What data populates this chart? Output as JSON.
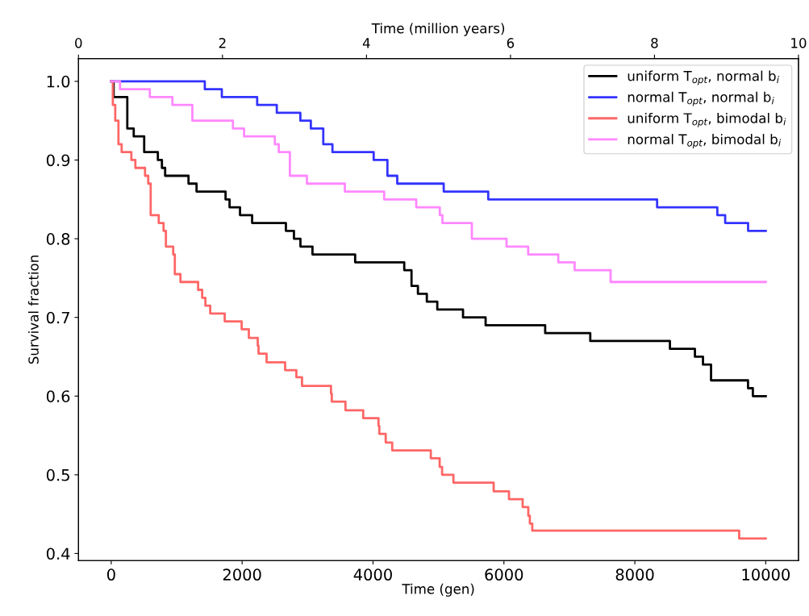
{
  "chart_data": {
    "type": "step",
    "xlabel": "Time (gen)",
    "ylabel": "Survival fraction",
    "x2label": "Time (million years)",
    "xlim": [
      -500,
      10500
    ],
    "xticks": [
      0,
      2000,
      4000,
      6000,
      8000,
      10000
    ],
    "ylim": [
      0.391,
      1.029
    ],
    "yticks": [
      0.4,
      0.5,
      0.6,
      0.7,
      0.8,
      0.9,
      {
        "value": 1,
        "label": "1.0"
      }
    ],
    "x2lim": [
      0,
      10
    ],
    "x2ticks": [
      0,
      2,
      4,
      6,
      8,
      10
    ],
    "legend": "top right",
    "grid": false,
    "series": [
      {
        "name": "uniform T$_{opt}$, normal b$_{i}$",
        "color": "#000000",
        "x": [
          0,
          37,
          246,
          344,
          504,
          713,
          775,
          824,
          1181,
          1304,
          1747,
          1808,
          1968,
          2153,
          2669,
          2792,
          2891,
          3075,
          3727,
          4477,
          4588,
          4686,
          4822,
          4982,
          5375,
          5720,
          6630,
          7319,
          8536,
          8918,
          9041,
          9164,
          9729,
          9803,
          10000
        ],
        "values": [
          1.0,
          0.98,
          0.94,
          0.93,
          0.91,
          0.9,
          0.89,
          0.88,
          0.87,
          0.86,
          0.85,
          0.84,
          0.83,
          0.82,
          0.81,
          0.8,
          0.79,
          0.78,
          0.77,
          0.76,
          0.74,
          0.73,
          0.72,
          0.71,
          0.7,
          0.69,
          0.68,
          0.67,
          0.66,
          0.65,
          0.64,
          0.62,
          0.61,
          0.6,
          0.6
        ]
      },
      {
        "name": "normal T$_{opt}$, normal b$_{i}$",
        "color": "#3333ff",
        "x": [
          0,
          1430,
          1690,
          2230,
          2530,
          2890,
          3050,
          3240,
          3380,
          4010,
          4220,
          4370,
          5080,
          5760,
          8340,
          9260,
          9380,
          9730,
          10000
        ],
        "values": [
          1.0,
          0.99,
          0.98,
          0.97,
          0.96,
          0.95,
          0.94,
          0.92,
          0.91,
          0.9,
          0.88,
          0.87,
          0.86,
          0.85,
          0.84,
          0.83,
          0.82,
          0.81,
          0.81
        ]
      },
      {
        "name": "uniform T$_{opt}$, bimodal b$_{i}$",
        "color": "#ff6666",
        "x": [
          0,
          25,
          62,
          111,
          160,
          308,
          369,
          517,
          566,
          603,
          726,
          800,
          836,
          947,
          972,
          1058,
          1328,
          1390,
          1439,
          1513,
          1734,
          1993,
          2103,
          2239,
          2251,
          2374,
          2657,
          2829,
          2915,
          3358,
          3370,
          3579,
          3850,
          4084,
          4096,
          4194,
          4293,
          4883,
          5018,
          5055,
          5228,
          5843,
          6077,
          6286,
          6372,
          6396,
          6433,
          9594,
          10000
        ],
        "values": [
          1.0,
          0.97,
          0.95,
          0.92,
          0.91,
          0.9,
          0.89,
          0.88,
          0.87,
          0.83,
          0.82,
          0.81,
          0.79,
          0.78,
          0.755,
          0.745,
          0.735,
          0.725,
          0.715,
          0.705,
          0.695,
          0.685,
          0.674,
          0.664,
          0.654,
          0.643,
          0.633,
          0.624,
          0.613,
          0.603,
          0.593,
          0.582,
          0.572,
          0.562,
          0.552,
          0.541,
          0.531,
          0.521,
          0.51,
          0.5,
          0.49,
          0.479,
          0.469,
          0.459,
          0.448,
          0.438,
          0.429,
          0.419,
          0.419
        ]
      },
      {
        "name": "normal T$_{opt}$, bimodal b$_{i}$",
        "color": "#ff88ff",
        "x": [
          0,
          135,
          590,
          935,
          1240,
          1860,
          2030,
          2500,
          2560,
          2730,
          2990,
          3570,
          4170,
          4660,
          5020,
          5060,
          5510,
          6040,
          6370,
          6830,
          7080,
          7630,
          10000
        ],
        "values": [
          1.0,
          0.99,
          0.98,
          0.97,
          0.95,
          0.94,
          0.93,
          0.92,
          0.91,
          0.88,
          0.87,
          0.86,
          0.85,
          0.84,
          0.83,
          0.82,
          0.8,
          0.79,
          0.78,
          0.77,
          0.76,
          0.745,
          0.745
        ]
      }
    ]
  }
}
